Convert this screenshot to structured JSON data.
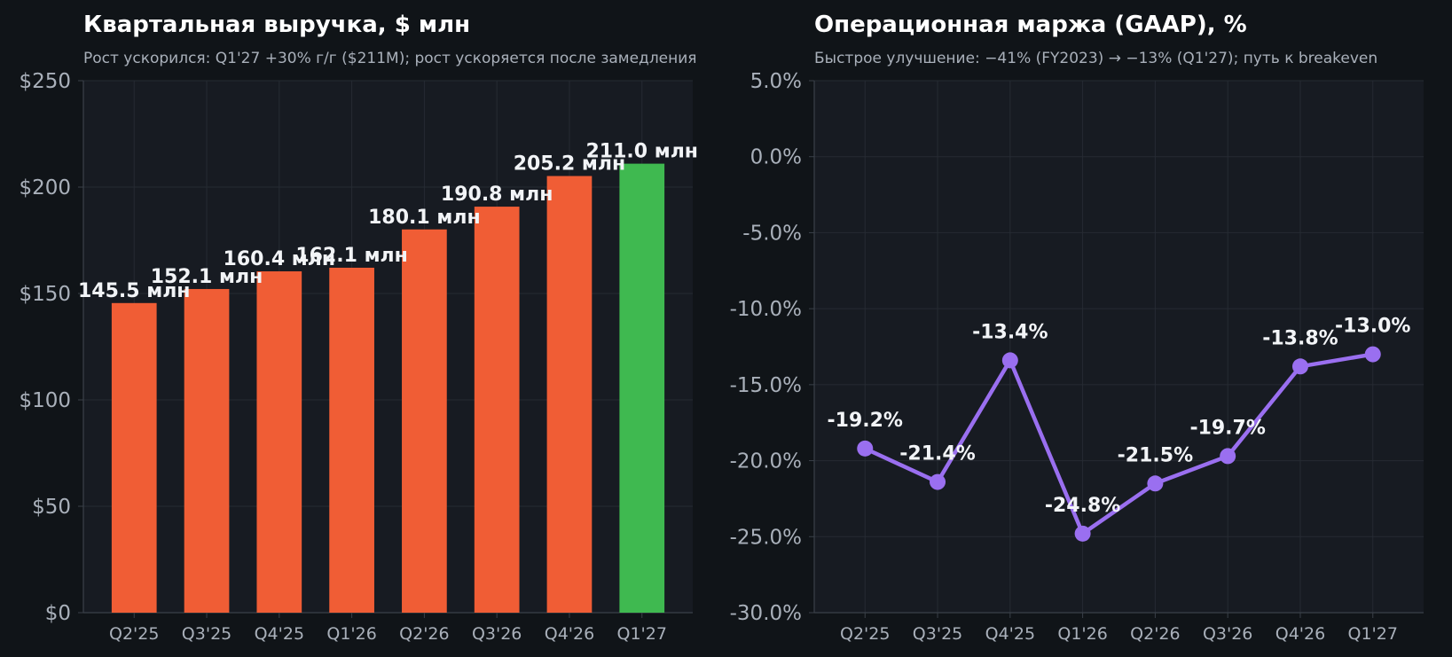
{
  "colors": {
    "page_bg": "#101418",
    "plot_bg": "#171b22",
    "grid": "#262b33",
    "axis": "#3a4049",
    "title": "#ffffff",
    "subtitle": "#a9b0ba",
    "tick": "#a9b0ba",
    "label": "#f2f4f7",
    "bar": "#f05d35",
    "bar_highlight": "#3fb950",
    "line": "#9a6ff0"
  },
  "chart_data": [
    {
      "type": "bar",
      "title": "Квартальная выручка, $ млн",
      "subtitle": "Рост ускорился: Q1'27 +30% г/г ($211M); рост ускоряется после замедления",
      "xlabel": "",
      "ylabel": "",
      "categories": [
        "Q2'25",
        "Q3'25",
        "Q4'25",
        "Q1'26",
        "Q2'26",
        "Q3'26",
        "Q4'26",
        "Q1'27"
      ],
      "values": [
        145.5,
        152.1,
        160.4,
        162.1,
        180.1,
        190.8,
        205.2,
        211.0
      ],
      "value_labels": [
        "145.5 млн",
        "152.1 млн",
        "160.4 млн",
        "162.1 млн",
        "180.1 млн",
        "190.8 млн",
        "205.2 млн",
        "211.0 млн"
      ],
      "highlight_index": 7,
      "ylim": [
        0,
        250
      ],
      "yticks": [
        0,
        50,
        100,
        150,
        200,
        250
      ],
      "ytick_labels": [
        "$0",
        "$50",
        "$100",
        "$150",
        "$200",
        "$250"
      ],
      "grid": true,
      "legend": "none"
    },
    {
      "type": "line",
      "title": "Операционная маржа (GAAP), %",
      "subtitle": "Быстрое улучшение: −41% (FY2023) → −13% (Q1'27); путь к breakeven",
      "xlabel": "",
      "ylabel": "",
      "categories": [
        "Q2'25",
        "Q3'25",
        "Q4'25",
        "Q1'26",
        "Q2'26",
        "Q3'26",
        "Q4'26",
        "Q1'27"
      ],
      "values": [
        -19.2,
        -21.4,
        -13.4,
        -24.8,
        -21.5,
        -19.7,
        -13.8,
        -13.0
      ],
      "value_labels": [
        "-19.2%",
        "-21.4%",
        "-13.4%",
        "-24.8%",
        "-21.5%",
        "-19.7%",
        "-13.8%",
        "-13.0%"
      ],
      "ylim": [
        -30,
        5
      ],
      "yticks": [
        5,
        0,
        -5,
        -10,
        -15,
        -20,
        -25,
        -30
      ],
      "ytick_labels": [
        "5.0%",
        "0.0%",
        "-5.0%",
        "-10.0%",
        "-15.0%",
        "-20.0%",
        "-25.0%",
        "-30.0%"
      ],
      "grid": true,
      "legend": "none"
    }
  ]
}
